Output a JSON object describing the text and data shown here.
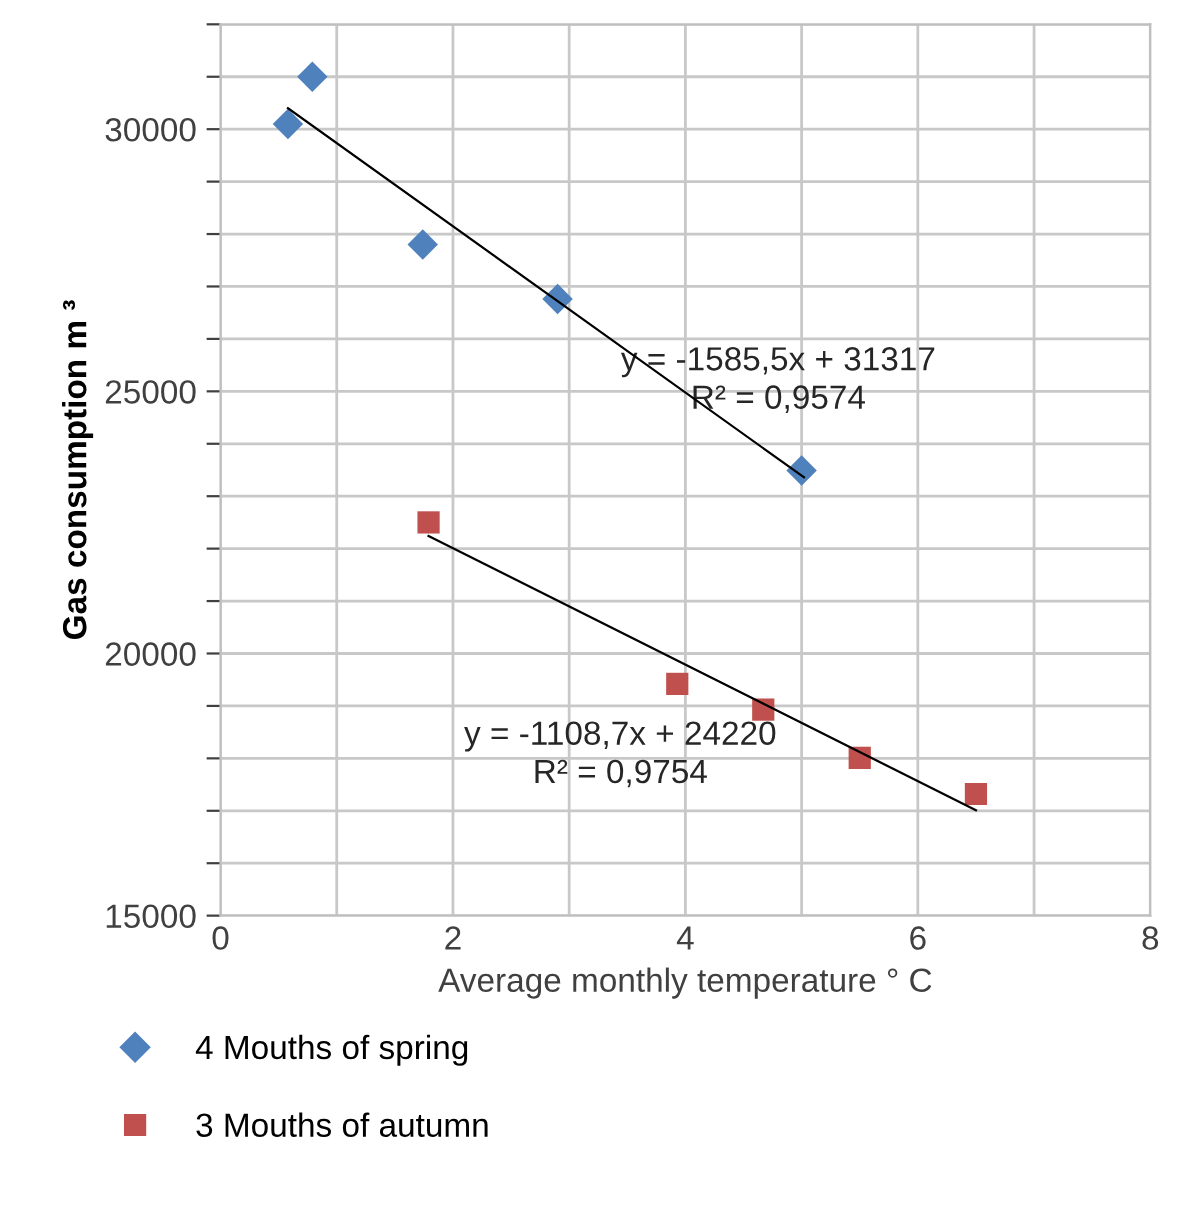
{
  "chart_data": {
    "type": "scatter",
    "xlabel": "Average monthly temperature ° C",
    "ylabel": "Gas consumption m ³",
    "xlim": [
      0,
      8
    ],
    "xticks": [
      0,
      {
        "value": 1,
        "label": null
      },
      2,
      {
        "value": 3,
        "label": null
      },
      4,
      {
        "value": 5,
        "label": null
      },
      6,
      {
        "value": 7,
        "label": null
      },
      8
    ],
    "ylim": [
      15000,
      32000
    ],
    "yticks": [
      15000,
      {
        "value": 16000,
        "label": null
      },
      {
        "value": 17000,
        "label": null
      },
      {
        "value": 18000,
        "label": null
      },
      {
        "value": 19000,
        "label": null
      },
      20000,
      {
        "value": 21000,
        "label": null
      },
      {
        "value": 22000,
        "label": null
      },
      {
        "value": 23000,
        "label": null
      },
      {
        "value": 24000,
        "label": null
      },
      25000,
      {
        "value": 26000,
        "label": null
      },
      {
        "value": 27000,
        "label": null
      },
      {
        "value": 28000,
        "label": null
      },
      {
        "value": 29000,
        "label": null
      },
      30000,
      {
        "value": 31000,
        "label": null
      },
      {
        "value": 32000,
        "label": null
      }
    ],
    "grid": true,
    "legend": "bottom",
    "series": [
      {
        "name": "4 Mouths of spring",
        "color": "#4f81bd",
        "marker": "diamond",
        "x": [
          0.58,
          0.79,
          1.74,
          2.9,
          5.0
        ],
        "values": [
          30100,
          31000,
          27800,
          26760,
          23490
        ]
      },
      {
        "name": "3 Mouths of autumn",
        "color": "#c0504d",
        "marker": "square",
        "x": [
          1.79,
          3.93,
          4.67,
          5.5,
          6.5
        ],
        "values": [
          22500,
          19420,
          18930,
          18010,
          17320
        ]
      },
      {
        "type": "line",
        "color": "#000000",
        "marker": "none",
        "x": [
          0.58,
          5.02
        ],
        "values": [
          30400,
          23360
        ]
      },
      {
        "type": "line",
        "color": "#000000",
        "marker": "none",
        "x": [
          1.79,
          6.5
        ],
        "values": [
          22240,
          17010
        ]
      }
    ],
    "annotations": [
      "y = -1585,5x + 31317\nR² = 0,9574",
      "y = -1108,7x + 24220\nR² = 0,9754"
    ]
  }
}
